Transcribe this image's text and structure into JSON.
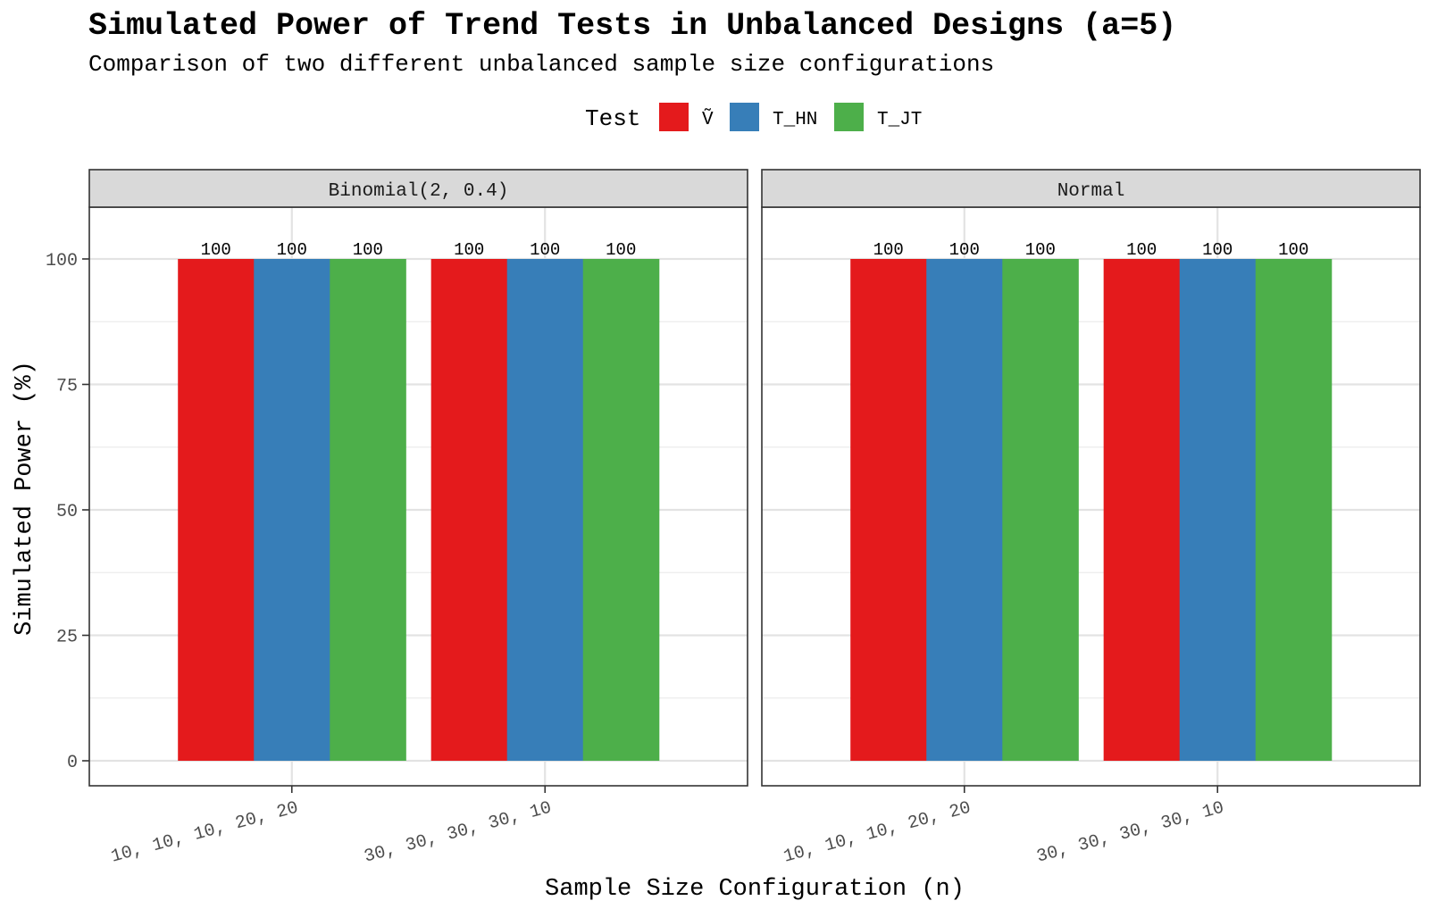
{
  "chart_data": {
    "type": "bar",
    "title": "Simulated Power of Trend Tests in Unbalanced Designs (a=5)",
    "subtitle": "Comparison of two different unbalanced sample size configurations",
    "xlabel": "Sample Size Configuration (n)",
    "ylabel": "Simulated Power (%)",
    "ylim": [
      0,
      110
    ],
    "yticks": [
      "0",
      "25",
      "50",
      "75",
      "100"
    ],
    "grid": true,
    "legend": {
      "title": "Test",
      "placement": "top",
      "entries": [
        {
          "label": "Ṽ",
          "color": "#E41A1C"
        },
        {
          "label": "T_HN",
          "color": "#377EB8"
        },
        {
          "label": "T_JT",
          "color": "#4DAF4A"
        }
      ]
    },
    "categories": [
      "10, 10, 10, 20, 20",
      "30, 30, 30, 30, 10"
    ],
    "panels": [
      {
        "name": "Binomial(2, 0.4)",
        "series": [
          {
            "name": "Ṽ",
            "values": [
              100,
              100
            ],
            "labels": [
              "100",
              "100"
            ]
          },
          {
            "name": "T_HN",
            "values": [
              100,
              100
            ],
            "labels": [
              "100",
              "100"
            ]
          },
          {
            "name": "T_JT",
            "values": [
              100,
              100
            ],
            "labels": [
              "100",
              "100"
            ]
          }
        ]
      },
      {
        "name": "Normal",
        "series": [
          {
            "name": "Ṽ",
            "values": [
              100,
              100
            ],
            "labels": [
              "100",
              "100"
            ]
          },
          {
            "name": "T_HN",
            "values": [
              100,
              100
            ],
            "labels": [
              "100",
              "100"
            ]
          },
          {
            "name": "T_JT",
            "values": [
              100,
              100
            ],
            "labels": [
              "100",
              "100"
            ]
          }
        ]
      }
    ]
  }
}
